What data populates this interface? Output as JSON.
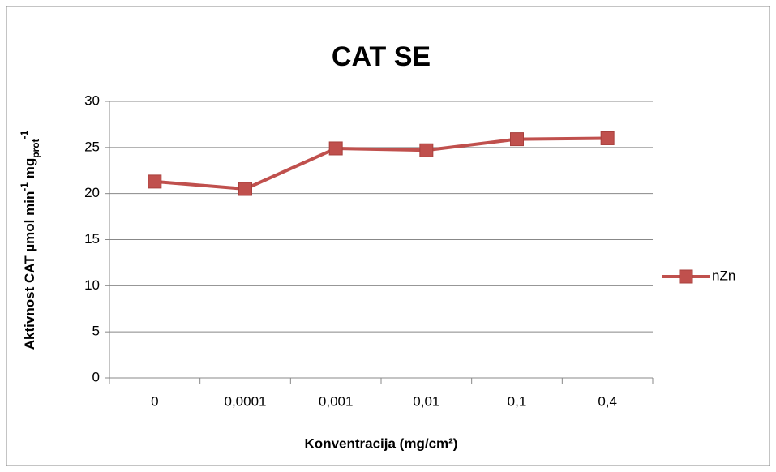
{
  "chart_data": {
    "type": "line",
    "title": "CAT SE",
    "x_label": "Konventracija (mg/cm²)",
    "y_label": [
      "Aktivnost CAT µmol min",
      "-1",
      " mg",
      "prot",
      "-1"
    ],
    "categories": [
      "0",
      "0,0001",
      "0,001",
      "0,01",
      "0,1",
      "0,4"
    ],
    "series": [
      {
        "name": "nZn",
        "color": "#c0504d",
        "values": [
          21.3,
          20.5,
          24.9,
          24.7,
          25.9,
          26.0
        ]
      }
    ],
    "ylim": [
      0,
      30
    ],
    "yticks": [
      0,
      5,
      10,
      15,
      20,
      25,
      30
    ],
    "grid": true,
    "legend": "right"
  }
}
